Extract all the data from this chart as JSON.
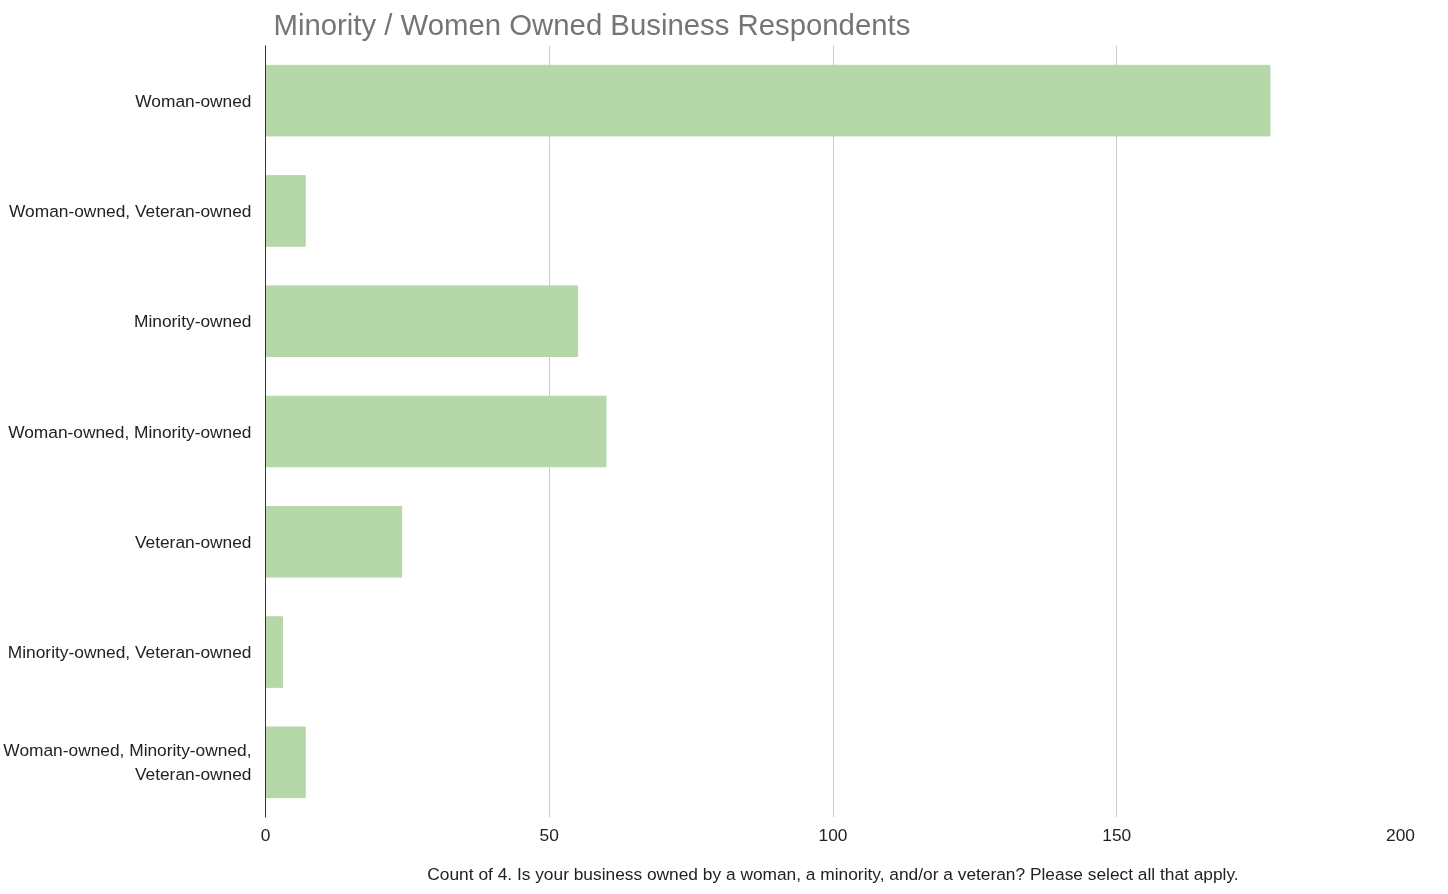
{
  "chart_data": {
    "type": "bar",
    "orientation": "horizontal",
    "title": "Minority / Women Owned Business Respondents",
    "categories": [
      "Woman-owned",
      "Woman-owned, Veteran-owned",
      "Minority-owned",
      "Woman-owned, Minority-owned",
      "Veteran-owned",
      "Minority-owned, Veteran-owned",
      "Woman-owned, Minority-owned, Veteran-owned"
    ],
    "values": [
      177,
      7,
      55,
      60,
      24,
      3,
      7
    ],
    "color": "#b6d7a8",
    "xlim": [
      0,
      200
    ],
    "xticks": [
      0,
      50,
      100,
      150,
      200
    ],
    "grid": "x",
    "xlabel": "Count of 4. Is your business owned by a woman, a minority, and/or a veteran? Please select all that apply."
  }
}
